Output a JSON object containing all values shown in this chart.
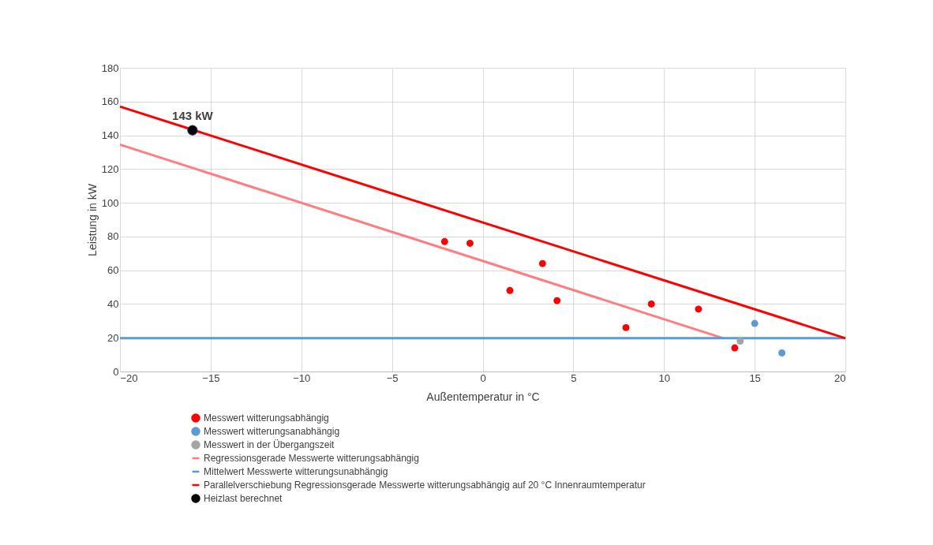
{
  "chart_data": {
    "type": "scatter",
    "xlabel": "Außentemperatur in °C",
    "ylabel": "Leistung in kW",
    "xlim": [
      -20,
      20
    ],
    "xticks": [
      -20,
      -15,
      -10,
      -5,
      0,
      5,
      10,
      15,
      20
    ],
    "ylim": [
      0,
      180
    ],
    "yticks": [
      0,
      20,
      40,
      60,
      80,
      100,
      120,
      140,
      160,
      180
    ],
    "grid": true,
    "legend": "bottom",
    "series": [
      {
        "name": "Messwert witterungsabhängig",
        "marker": "circle",
        "color": "#ff0000",
        "x": [
          -2.1,
          -0.7,
          1.5,
          3.3,
          4.1,
          7.9,
          9.3,
          11.9,
          13.9
        ],
        "values": [
          77,
          76,
          48,
          64,
          42,
          26,
          40,
          37,
          14
        ]
      },
      {
        "name": "Messwert witterungsanabhängig",
        "marker": "circle",
        "color": "#5b9bd5",
        "x": [
          15.0,
          16.5
        ],
        "values": [
          28.5,
          11
        ]
      },
      {
        "name": "Messwert in der Übergangszeit",
        "marker": "circle",
        "color": "#a5a5a5",
        "x": [
          14.2
        ],
        "values": [
          18
        ]
      },
      {
        "name": "Regressionsgerade Messwerte witterungsabhängig",
        "type": "line",
        "marker": "none",
        "color": "#ff7c80",
        "x": [
          -20,
          13.3
        ],
        "values": [
          134.5,
          19.6
        ]
      },
      {
        "name": "Mittelwert Messwerte witterungsunabhängig",
        "type": "line",
        "marker": "none",
        "color": "#5b9bd5",
        "x": [
          -20,
          20
        ],
        "values": [
          19.7,
          19.7
        ]
      },
      {
        "name": "Parallelverschiebung Regressionsgerade Messwerte witterungsabhängig auf 20 °C Innenraumtemperatur",
        "type": "line",
        "marker": "none",
        "color": "#ff0000",
        "x": [
          -20,
          20
        ],
        "values": [
          157,
          19.7
        ]
      },
      {
        "name": "Heizlast berechnet",
        "marker": "circle",
        "color": "#000000",
        "x": [
          -16
        ],
        "values": [
          143
        ]
      }
    ],
    "annotations": [
      {
        "text": "143 kW",
        "x": -16,
        "y": 143
      }
    ]
  }
}
